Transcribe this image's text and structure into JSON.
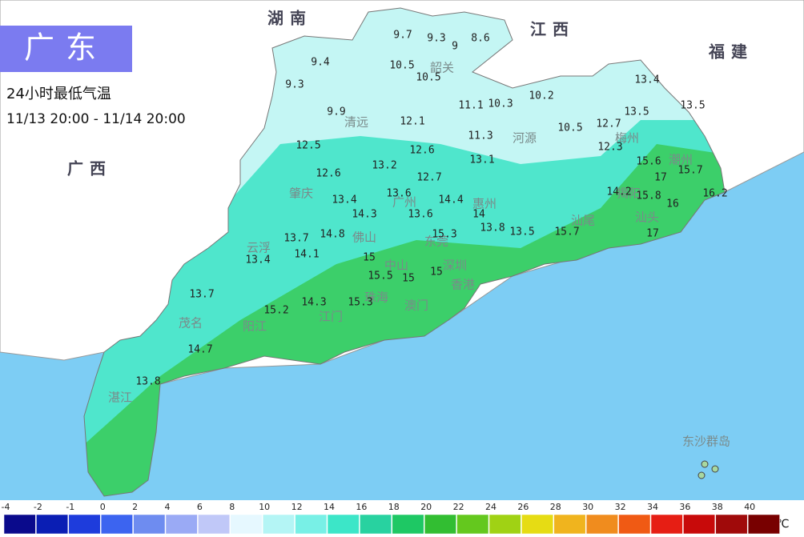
{
  "header": {
    "title": "广东",
    "subtitle": "24小时最低气温",
    "period": "11/13 20:00 - 11/14 20:00"
  },
  "neighbors": [
    "湖南",
    "江西",
    "福建",
    "广西"
  ],
  "cities": [
    "韶关",
    "清远",
    "河源",
    "梅州",
    "潮州",
    "揭阳",
    "汕头",
    "汕尾",
    "肇庆",
    "广州",
    "惠州",
    "佛山",
    "东莞",
    "云浮",
    "中山",
    "深圳",
    "珠海",
    "香港",
    "澳门",
    "江门",
    "阳江",
    "茂名",
    "湛江",
    "东沙群岛"
  ],
  "stations": [
    9.7,
    9.3,
    9,
    8.6,
    9.4,
    10.5,
    10.5,
    9.3,
    13.4,
    11.1,
    10.3,
    10.2,
    13.5,
    9.9,
    13.5,
    12.1,
    12.7,
    10.5,
    11.3,
    12.5,
    12.6,
    12.3,
    13.1,
    15.6,
    13.2,
    12.6,
    12.7,
    17,
    15.7,
    14.2,
    15.8,
    13.6,
    14.4,
    13.4,
    16.2,
    16,
    14.3,
    13.6,
    14,
    13.8,
    13.5,
    15.7,
    17,
    13.7,
    14.8,
    15.3,
    14.1,
    13.4,
    15,
    15.5,
    15,
    15,
    13.7,
    14.3,
    15.3,
    15.2,
    14.7,
    13.8
  ],
  "legend": {
    "ticks": [
      -4,
      -2,
      -1,
      0,
      2,
      4,
      6,
      8,
      10,
      12,
      14,
      16,
      18,
      20,
      22,
      24,
      26,
      28,
      30,
      32,
      34,
      36,
      38,
      40
    ],
    "colors": [
      "#0a0a8c",
      "#0a1eb4",
      "#1e3cdc",
      "#3c64f0",
      "#6e8cf0",
      "#9aaaf5",
      "#c0c8f8",
      "#e6f8ff",
      "#b4f5f5",
      "#78f0e6",
      "#3ce6c8",
      "#28d2a0",
      "#1ec864",
      "#32be32",
      "#64c81e",
      "#a0d214",
      "#e6dc14",
      "#f0b41e",
      "#f08c1e",
      "#f05a14",
      "#e61e14",
      "#c80a0a",
      "#a00a0a",
      "#780000"
    ],
    "unit": "单位:℃"
  }
}
